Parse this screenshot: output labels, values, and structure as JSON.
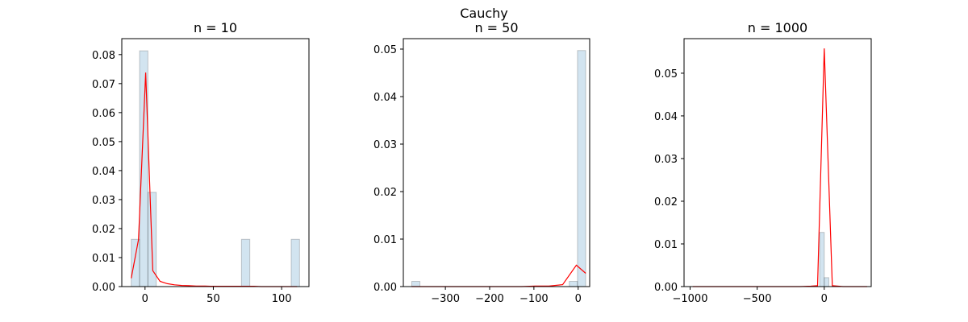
{
  "suptitle": "Cauchy",
  "chart_data": [
    {
      "type": "bar",
      "title": "n = 10",
      "xlim": [
        -17,
        120
      ],
      "ylim": [
        0,
        0.0855
      ],
      "xticks": [
        0,
        50,
        100
      ],
      "xtick_labels": [
        "0",
        "50",
        "100"
      ],
      "yticks": [
        0,
        0.01,
        0.02,
        0.03,
        0.04,
        0.05,
        0.06,
        0.07,
        0.08
      ],
      "ytick_labels": [
        "0.00",
        "0.01",
        "0.02",
        "0.03",
        "0.04",
        "0.05",
        "0.06",
        "0.07",
        "0.08"
      ],
      "bars": [
        {
          "x0": -10.1,
          "x1": -4.0,
          "value": 0.0163
        },
        {
          "x0": -4.0,
          "x1": 2.1,
          "value": 0.0813
        },
        {
          "x0": 2.1,
          "x1": 8.2,
          "value": 0.0325
        },
        {
          "x0": 70.6,
          "x1": 76.7,
          "value": 0.0163
        },
        {
          "x0": 107.0,
          "x1": 113.1,
          "value": 0.0163
        }
      ],
      "line": {
        "name": "",
        "x": [
          -10.1,
          -4.8,
          0.5,
          5.7,
          11.0,
          16.3,
          21.6,
          26.9,
          32.1,
          37.4,
          42.7,
          48.0,
          53.3,
          58.5,
          63.8,
          69.1,
          74.4,
          79.7,
          84.9,
          90.2,
          95.5,
          100.8,
          106.1,
          111.3
        ],
        "y": [
          0.0029,
          0.0162,
          0.0738,
          0.0055,
          0.0018,
          0.001,
          0.0006,
          0.0004,
          0.0003,
          0.0002,
          0.0002,
          0.0001,
          0.0001,
          0.0001,
          0.0001,
          0.0001,
          0.0001,
          0.0001,
          0.0,
          0.0,
          0.0,
          0.0,
          0.0,
          0.0
        ]
      }
    },
    {
      "type": "bar",
      "title": "n = 50",
      "xlim": [
        -395,
        26
      ],
      "ylim": [
        0,
        0.0522
      ],
      "xticks": [
        -300,
        -200,
        -100,
        0
      ],
      "xtick_labels": [
        "−300",
        "−200",
        "−100",
        "0"
      ],
      "yticks": [
        0,
        0.01,
        0.02,
        0.03,
        0.04,
        0.05
      ],
      "ytick_labels": [
        "0.00",
        "0.01",
        "0.02",
        "0.03",
        "0.04",
        "0.05"
      ],
      "bars": [
        {
          "x0": -376.0,
          "x1": -357.5,
          "value": 0.0011
        },
        {
          "x0": -20.0,
          "x1": -1.5,
          "value": 0.0011
        },
        {
          "x0": -1.5,
          "x1": 17.0,
          "value": 0.0497
        }
      ],
      "line": {
        "name": "",
        "x": [
          -376,
          -345,
          -314,
          -283,
          -252,
          -221,
          -190,
          -159,
          -128,
          -97,
          -66,
          -35,
          -4,
          17
        ],
        "y": [
          0.0,
          0.0,
          0.0,
          0.0,
          0.0,
          0.0,
          0.0,
          0.0,
          0.0,
          0.0001,
          0.0001,
          0.0004,
          0.0045,
          0.0028
        ]
      }
    },
    {
      "type": "bar",
      "title": "n = 1000",
      "xlim": [
        -1045,
        350
      ],
      "ylim": [
        0,
        0.0581
      ],
      "xticks": [
        -1000,
        -500,
        0
      ],
      "xtick_labels": [
        "−1000",
        "−500",
        "0"
      ],
      "yticks": [
        0,
        0.01,
        0.02,
        0.03,
        0.04,
        0.05
      ],
      "ytick_labels": [
        "0.00",
        "0.01",
        "0.02",
        "0.03",
        "0.04",
        "0.05"
      ],
      "bars": [
        {
          "x0": -34.0,
          "x1": 0.0,
          "value": 0.0127
        },
        {
          "x0": 0.0,
          "x1": 34.0,
          "value": 0.0021
        }
      ],
      "line": {
        "name": "",
        "x": [
          -980,
          -900,
          -820,
          -740,
          -660,
          -580,
          -500,
          -420,
          -340,
          -260,
          -180,
          -100,
          -50,
          0,
          60,
          140,
          220,
          320
        ],
        "y": [
          0.0,
          0.0,
          0.0,
          0.0,
          0.0,
          0.0,
          0.0,
          0.0,
          0.0,
          0.0,
          0.0,
          0.0001,
          0.0002,
          0.0558,
          0.0002,
          0.0,
          0.0,
          0.0
        ]
      }
    }
  ]
}
